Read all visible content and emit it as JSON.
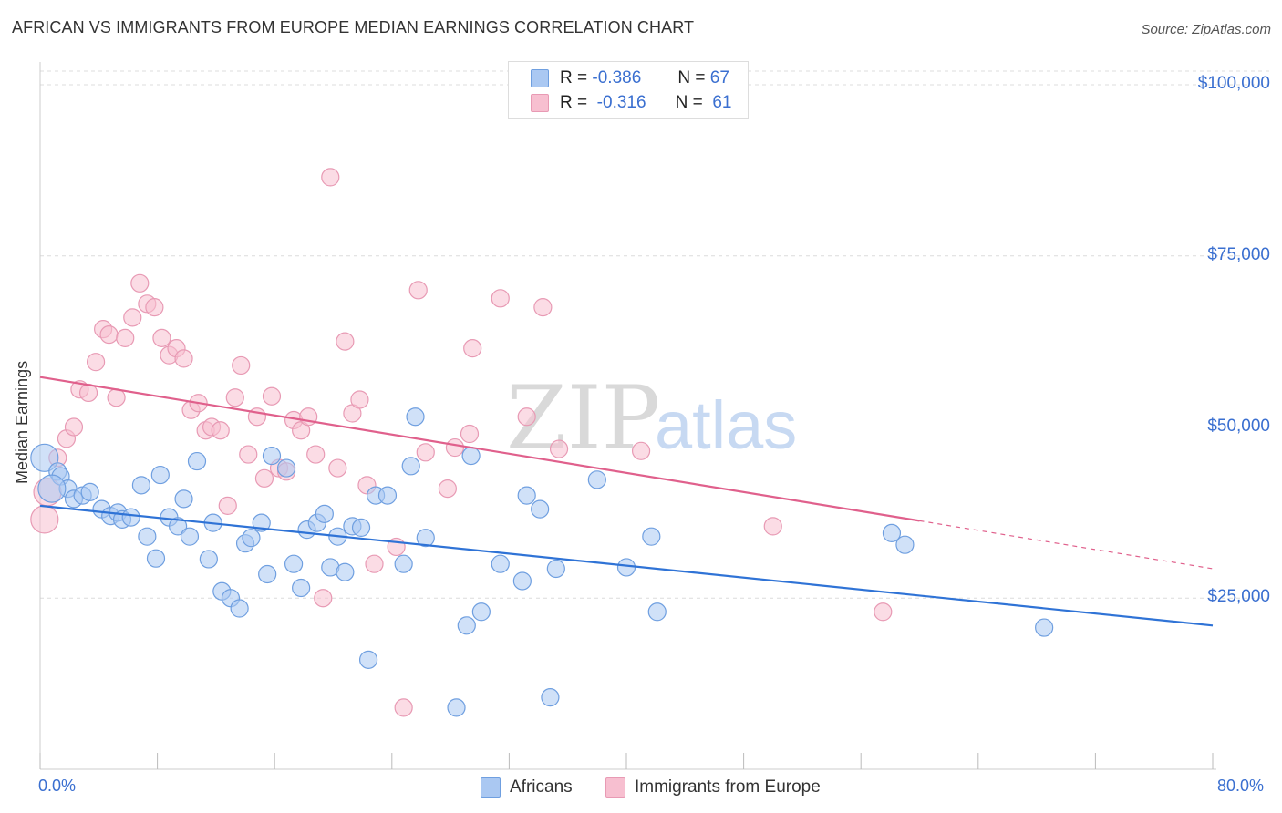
{
  "title": "AFRICAN VS IMMIGRANTS FROM EUROPE MEDIAN EARNINGS CORRELATION CHART",
  "source": "Source: ZipAtlas.com",
  "watermark": {
    "zip": "ZIP",
    "atlas": "atlas"
  },
  "colors": {
    "blue_fill": "#aac8f2",
    "blue_stroke": "#6f9fe0",
    "blue_line": "#2f73d6",
    "pink_fill": "#f7bfd0",
    "pink_stroke": "#e89ab4",
    "pink_line": "#e0608c",
    "grid": "#dcdcdc",
    "accent_text": "#3a6fd0"
  },
  "legend": {
    "africans": {
      "r_label": "R =",
      "r_value": "-0.386",
      "n_label": "N =",
      "n_value": "67"
    },
    "europe": {
      "r_label": "R =",
      "r_value": "-0.316",
      "n_label": "N =",
      "n_value": "61"
    }
  },
  "bottom_legend": {
    "africans": "Africans",
    "europe": "Immigrants from Europe"
  },
  "axis": {
    "x_min_label": "0.0%",
    "x_max_label": "80.0%",
    "y_title": "Median Earnings",
    "y_ticks": [
      {
        "value": 100000,
        "label": "$100,000"
      },
      {
        "value": 75000,
        "label": "$75,000"
      },
      {
        "value": 50000,
        "label": "$50,000"
      },
      {
        "value": 25000,
        "label": "$25,000"
      }
    ]
  },
  "chart_data": {
    "type": "scatter",
    "title": "AFRICAN VS IMMIGRANTS FROM EUROPE MEDIAN EARNINGS CORRELATION CHART",
    "xlabel": "",
    "ylabel": "Median Earnings",
    "xlim": [
      0,
      80
    ],
    "ylim": [
      0,
      102000
    ],
    "grid": true,
    "legend_placement": "top-center",
    "series": [
      {
        "name": "Africans",
        "trend": {
          "x0": 0,
          "y0": 38500,
          "x1": 80,
          "y1": 21000
        },
        "points": [
          [
            0.3,
            45500
          ],
          [
            1.2,
            43500
          ],
          [
            1.4,
            42800
          ],
          [
            1.9,
            41000
          ],
          [
            2.3,
            39500
          ],
          [
            2.9,
            40000
          ],
          [
            3.4,
            40500
          ],
          [
            4.2,
            38000
          ],
          [
            4.8,
            37000
          ],
          [
            5.3,
            37500
          ],
          [
            5.6,
            36500
          ],
          [
            6.2,
            36800
          ],
          [
            6.9,
            41500
          ],
          [
            7.3,
            34000
          ],
          [
            7.9,
            30800
          ],
          [
            8.2,
            43000
          ],
          [
            8.8,
            36800
          ],
          [
            9.4,
            35500
          ],
          [
            9.8,
            39500
          ],
          [
            10.2,
            34000
          ],
          [
            10.7,
            45000
          ],
          [
            11.5,
            30700
          ],
          [
            11.8,
            36000
          ],
          [
            12.4,
            26000
          ],
          [
            13.0,
            25000
          ],
          [
            13.6,
            23500
          ],
          [
            14.0,
            33000
          ],
          [
            14.4,
            33800
          ],
          [
            15.1,
            36000
          ],
          [
            15.5,
            28500
          ],
          [
            15.8,
            45800
          ],
          [
            16.8,
            44000
          ],
          [
            17.3,
            30000
          ],
          [
            17.8,
            26500
          ],
          [
            18.2,
            35000
          ],
          [
            18.9,
            36000
          ],
          [
            19.4,
            37300
          ],
          [
            19.8,
            29500
          ],
          [
            20.3,
            34000
          ],
          [
            20.8,
            28800
          ],
          [
            21.3,
            35500
          ],
          [
            21.9,
            35300
          ],
          [
            22.4,
            16000
          ],
          [
            22.9,
            40000
          ],
          [
            23.7,
            40000
          ],
          [
            24.8,
            30000
          ],
          [
            25.3,
            44300
          ],
          [
            25.6,
            51500
          ],
          [
            26.3,
            33800
          ],
          [
            28.4,
            9000
          ],
          [
            29.1,
            21000
          ],
          [
            29.4,
            45800
          ],
          [
            30.1,
            23000
          ],
          [
            31.4,
            30000
          ],
          [
            32.9,
            27500
          ],
          [
            33.2,
            40000
          ],
          [
            34.1,
            38000
          ],
          [
            34.8,
            10500
          ],
          [
            35.2,
            29300
          ],
          [
            38.0,
            42300
          ],
          [
            40.0,
            29500
          ],
          [
            41.7,
            34000
          ],
          [
            42.1,
            23000
          ],
          [
            58.1,
            34500
          ],
          [
            59.0,
            32800
          ],
          [
            68.5,
            20700
          ],
          [
            0.8,
            41000
          ]
        ]
      },
      {
        "name": "Immigrants from Europe",
        "trend": {
          "x0": 0,
          "y0": 57300,
          "x1": 60,
          "y1": 36300
        },
        "points": [
          [
            0.3,
            36500
          ],
          [
            0.5,
            40500
          ],
          [
            1.2,
            45500
          ],
          [
            1.8,
            48300
          ],
          [
            2.3,
            50000
          ],
          [
            2.7,
            55500
          ],
          [
            3.3,
            55000
          ],
          [
            3.8,
            59500
          ],
          [
            4.3,
            64300
          ],
          [
            4.7,
            63500
          ],
          [
            5.2,
            54300
          ],
          [
            5.8,
            63000
          ],
          [
            6.3,
            66000
          ],
          [
            6.8,
            71000
          ],
          [
            7.3,
            68000
          ],
          [
            7.8,
            67500
          ],
          [
            8.3,
            63000
          ],
          [
            8.8,
            60500
          ],
          [
            9.3,
            61500
          ],
          [
            9.8,
            60000
          ],
          [
            10.3,
            52500
          ],
          [
            10.8,
            53500
          ],
          [
            11.3,
            49500
          ],
          [
            11.7,
            50000
          ],
          [
            12.3,
            49500
          ],
          [
            12.8,
            38500
          ],
          [
            13.3,
            54300
          ],
          [
            13.7,
            59000
          ],
          [
            14.2,
            46000
          ],
          [
            14.8,
            51500
          ],
          [
            15.3,
            42500
          ],
          [
            15.8,
            54500
          ],
          [
            16.3,
            44000
          ],
          [
            16.8,
            43500
          ],
          [
            17.3,
            51000
          ],
          [
            17.8,
            49500
          ],
          [
            18.3,
            51500
          ],
          [
            18.8,
            46000
          ],
          [
            19.3,
            25000
          ],
          [
            19.8,
            86500
          ],
          [
            20.3,
            44000
          ],
          [
            20.8,
            62500
          ],
          [
            21.3,
            52000
          ],
          [
            21.8,
            54000
          ],
          [
            22.3,
            41500
          ],
          [
            22.8,
            30000
          ],
          [
            24.3,
            32500
          ],
          [
            24.8,
            9000
          ],
          [
            25.8,
            70000
          ],
          [
            26.3,
            46300
          ],
          [
            27.8,
            41000
          ],
          [
            28.3,
            47000
          ],
          [
            29.3,
            49000
          ],
          [
            29.5,
            61500
          ],
          [
            31.4,
            68800
          ],
          [
            33.2,
            51500
          ],
          [
            34.3,
            67500
          ],
          [
            35.4,
            46800
          ],
          [
            41.0,
            46500
          ],
          [
            50.0,
            35500
          ],
          [
            57.5,
            23000
          ]
        ]
      }
    ]
  }
}
